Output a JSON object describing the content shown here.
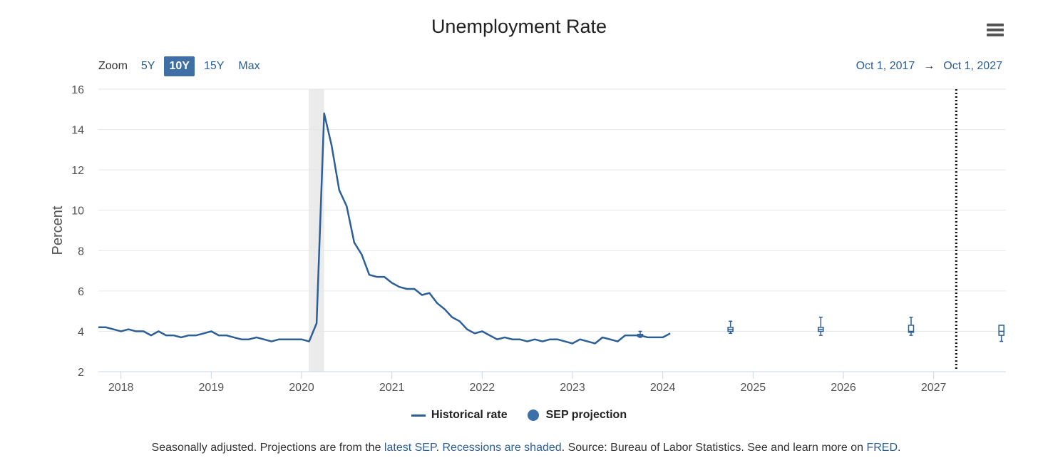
{
  "title": "Unemployment Rate",
  "zoom": {
    "label": "Zoom",
    "options": [
      "5Y",
      "10Y",
      "15Y",
      "Max"
    ],
    "active": "10Y"
  },
  "range": {
    "from": "Oct 1, 2017",
    "arrow": "→",
    "to": "Oct 1, 2027"
  },
  "legend": {
    "historical": "Historical rate",
    "projection": "SEP projection"
  },
  "footnote": {
    "part1": "Seasonally adjusted. Projections are from the ",
    "link1": "latest SEP",
    "part2": ". ",
    "link2": "Recessions are shaded",
    "part3": ". Source: Bureau of Labor Statistics. See and learn more on ",
    "link3": "FRED",
    "part4": "."
  },
  "colors": {
    "line": "#2d5f96",
    "recession": "#ebebeb",
    "grid": "#e6e6e6",
    "axis": "#ccd6eb",
    "accent": "#3f6fa5"
  },
  "chart_data": {
    "type": "line",
    "title": "Unemployment Rate",
    "xlabel": "",
    "ylabel": "Percent",
    "ylim": [
      2,
      16
    ],
    "yticks": [
      2,
      4,
      6,
      8,
      10,
      12,
      14,
      16
    ],
    "xlim": [
      2017.75,
      2027.8
    ],
    "xticks": [
      "2018",
      "2019",
      "2020",
      "2021",
      "2022",
      "2023",
      "2024",
      "2025",
      "2026",
      "2027"
    ],
    "recession": {
      "start": 2020.08,
      "end": 2020.25
    },
    "marker_line_x": 2027.25,
    "series": [
      {
        "name": "Historical rate",
        "start": 2017.75,
        "step_months": 1,
        "values": [
          4.2,
          4.2,
          4.1,
          4.0,
          4.1,
          4.0,
          4.0,
          3.8,
          4.0,
          3.8,
          3.8,
          3.7,
          3.8,
          3.8,
          3.9,
          4.0,
          3.8,
          3.8,
          3.7,
          3.6,
          3.6,
          3.7,
          3.6,
          3.5,
          3.6,
          3.6,
          3.6,
          3.6,
          3.5,
          4.4,
          14.8,
          13.2,
          11.0,
          10.2,
          8.4,
          7.8,
          6.8,
          6.7,
          6.7,
          6.4,
          6.2,
          6.1,
          6.1,
          5.8,
          5.9,
          5.4,
          5.1,
          4.7,
          4.5,
          4.1,
          3.9,
          4.0,
          3.8,
          3.6,
          3.7,
          3.6,
          3.6,
          3.5,
          3.6,
          3.5,
          3.6,
          3.6,
          3.5,
          3.4,
          3.6,
          3.5,
          3.4,
          3.7,
          3.6,
          3.5,
          3.8,
          3.8,
          3.8,
          3.7,
          3.7,
          3.7,
          3.9
        ]
      },
      {
        "name": "SEP projection",
        "points": [
          {
            "x": 2023.75,
            "low": 3.7,
            "q1": 3.75,
            "median": 3.8,
            "q3": 3.85,
            "high": 4.0
          },
          {
            "x": 2024.75,
            "low": 3.9,
            "q1": 4.0,
            "median": 4.1,
            "q3": 4.2,
            "high": 4.5
          },
          {
            "x": 2025.75,
            "low": 3.8,
            "q1": 4.0,
            "median": 4.1,
            "q3": 4.2,
            "high": 4.7
          },
          {
            "x": 2026.75,
            "low": 3.8,
            "q1": 3.95,
            "median": 4.0,
            "q3": 4.3,
            "high": 4.7
          },
          {
            "x": 2027.75,
            "low": 3.5,
            "q1": 3.8,
            "median": 4.0,
            "q3": 4.3,
            "high": 4.3
          }
        ]
      }
    ]
  }
}
